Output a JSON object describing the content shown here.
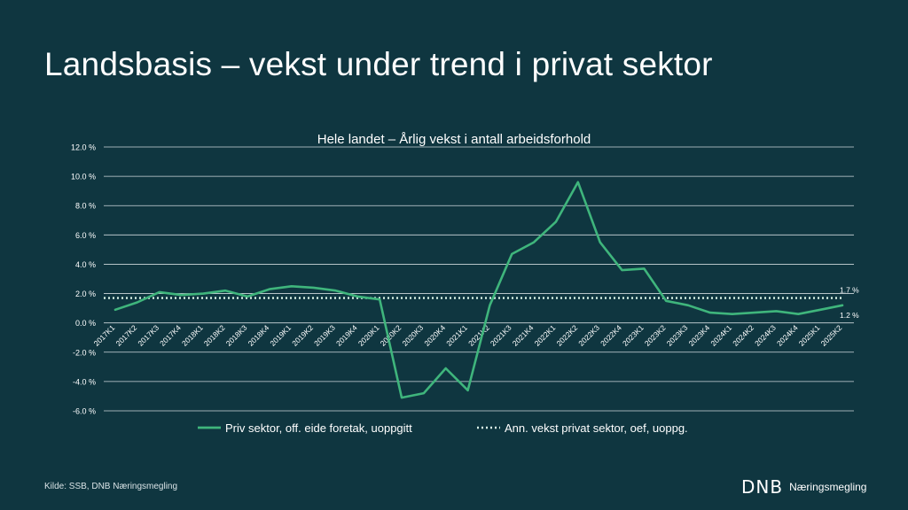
{
  "slide": {
    "title": "Landsbasis – vekst under trend i privat sektor",
    "source": "Kilde: SSB, DNB Næringsmegling",
    "brand_logo": "DNB",
    "brand_name": "Næringsmegling"
  },
  "colors": {
    "background": "#0f3640",
    "series_line": "#3fb57c",
    "trend_line": "#d9f2e6",
    "grid": "#cfd8dc"
  },
  "chart_data": {
    "type": "line",
    "title": "Hele landet – Årlig vekst i antall arbeidsforhold",
    "xlabel": "",
    "ylabel": "",
    "ylim": [
      -6,
      12
    ],
    "yticks": [
      -6,
      -4,
      -2,
      0,
      2,
      4,
      6,
      8,
      10,
      12
    ],
    "ytick_labels": [
      "-6.0 %",
      "-4.0 %",
      "-2.0 %",
      "0.0 %",
      "2.0 %",
      "4.0 %",
      "6.0 %",
      "8.0 %",
      "10.0 %",
      "12.0 %"
    ],
    "grid": true,
    "legend_position": "bottom",
    "categories": [
      "2017K1",
      "2017K2",
      "2017K3",
      "2017K4",
      "2018K1",
      "2018K2",
      "2018K3",
      "2018K4",
      "2019K1",
      "2019K2",
      "2019K3",
      "2019K4",
      "2020K1",
      "2020K2",
      "2020K3",
      "2020K4",
      "2021K1",
      "2021K2",
      "2021K3",
      "2021K4",
      "2022K1",
      "2022K2",
      "2022K3",
      "2022K4",
      "2023K1",
      "2023K2",
      "2023K3",
      "2023K4",
      "2024K1",
      "2024K2",
      "2024K3",
      "2024K4",
      "2025K1",
      "2025K2"
    ],
    "series": [
      {
        "name": "Priv sektor, off. eide foretak, uoppgitt",
        "style": "solid",
        "values": [
          0.9,
          1.4,
          2.1,
          1.9,
          2.0,
          2.2,
          1.8,
          2.3,
          2.5,
          2.4,
          2.2,
          1.8,
          1.6,
          -5.1,
          -4.8,
          -3.1,
          -4.6,
          1.2,
          4.7,
          5.5,
          6.9,
          9.6,
          5.5,
          3.6,
          3.7,
          1.5,
          1.2,
          0.7,
          0.6,
          0.7,
          0.8,
          0.6,
          0.9,
          1.2
        ],
        "end_label": "1.2 %"
      },
      {
        "name": "Ann. vekst privat sektor, oef, uoppg.",
        "style": "dotted",
        "constant": 1.7,
        "end_label": "1.7 %"
      }
    ]
  }
}
